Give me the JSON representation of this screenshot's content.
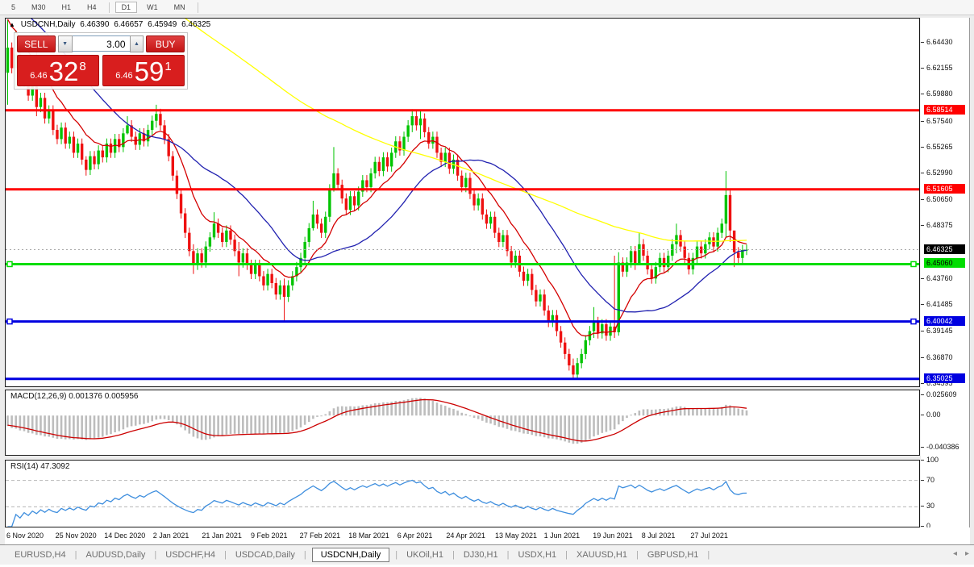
{
  "toolbar": {
    "timeframes": [
      "5",
      "M30",
      "H1",
      "H4",
      "D1",
      "W1",
      "MN"
    ],
    "active": "D1"
  },
  "chart": {
    "marker": "▲",
    "symbol": "USDCNH,Daily",
    "ohlc": {
      "open": "6.46390",
      "high": "6.46657",
      "low": "6.45949",
      "close": "6.46325"
    },
    "trade_panel": {
      "sell_label": "SELL",
      "buy_label": "BUY",
      "volume": "3.00",
      "sell": {
        "small": "6.46",
        "big": "32",
        "sup": "8"
      },
      "buy": {
        "small": "6.46",
        "big": "59",
        "sup": "1"
      }
    },
    "axis_ticks": [
      "6.64430",
      "6.62155",
      "6.59880",
      "6.57540",
      "6.55265",
      "6.52990",
      "6.50650",
      "6.48375",
      "6.43760",
      "6.41485",
      "6.39145",
      "6.36870",
      "6.34595"
    ],
    "dates": [
      "6 Nov 2020",
      "25 Nov 2020",
      "14 Dec 2020",
      "2 Jan 2021",
      "21 Jan 2021",
      "9 Feb 2021",
      "27 Feb 2021",
      "18 Mar 2021",
      "6 Apr 2021",
      "24 Apr 2021",
      "13 May 2021",
      "1 Jun 2021",
      "19 Jun 2021",
      "8 Jul 2021",
      "27 Jul 2021"
    ]
  },
  "chart_data": {
    "type": "candlestick",
    "title": "USDCNH Daily",
    "ylim": [
      6.3437,
      6.6654
    ],
    "levels": [
      {
        "price": 6.58514,
        "label": "6.58514",
        "color": "#FF0000",
        "text_color": "#FFFFFF",
        "handles": false
      },
      {
        "price": 6.51605,
        "label": "6.51605",
        "color": "#FF0000",
        "text_color": "#FFFFFF",
        "handles": false
      },
      {
        "price": 6.4506,
        "label": "6.45060",
        "color": "#00DD00",
        "text_color": "#000000",
        "handles": true
      },
      {
        "price": 6.40042,
        "label": "6.40042",
        "color": "#0000E0",
        "text_color": "#FFFFFF",
        "handles": true
      },
      {
        "price": 6.35025,
        "label": "6.35025",
        "color": "#0000E0",
        "text_color": "#FFFFFF",
        "handles": false
      }
    ],
    "bid": {
      "price": 6.46325,
      "label": "6.46325",
      "color": "#000000",
      "text_color": "#FFFFFF"
    },
    "candle_colors": {
      "up": "#00C400",
      "down": "#EE1111"
    },
    "first_open": 6.618,
    "default_wick": 0.0045,
    "closes": [
      6.64,
      6.622,
      6.634,
      6.61,
      6.618,
      6.598,
      6.606,
      6.588,
      6.596,
      6.578,
      6.585,
      6.568,
      6.56,
      6.57,
      6.556,
      6.562,
      6.548,
      6.556,
      6.542,
      6.533,
      6.545,
      6.538,
      6.55,
      6.544,
      6.556,
      6.548,
      6.56,
      6.553,
      6.565,
      6.572,
      6.562,
      6.555,
      6.565,
      6.558,
      6.568,
      6.576,
      6.582,
      6.572,
      6.56,
      6.545,
      6.528,
      6.512,
      6.495,
      6.478,
      6.462,
      6.45,
      6.46,
      6.452,
      6.466,
      6.474,
      6.486,
      6.478,
      6.47,
      6.48,
      6.472,
      6.462,
      6.452,
      6.46,
      6.45,
      6.442,
      6.45,
      6.44,
      6.432,
      6.442,
      6.434,
      6.424,
      6.432,
      6.422,
      6.432,
      6.44,
      6.448,
      6.456,
      6.47,
      6.482,
      6.494,
      6.486,
      6.478,
      6.492,
      6.516,
      6.53,
      6.52,
      6.508,
      6.498,
      6.51,
      6.502,
      6.514,
      6.524,
      6.518,
      6.53,
      6.54,
      6.532,
      6.544,
      6.536,
      6.548,
      6.558,
      6.55,
      6.562,
      6.572,
      6.58,
      6.572,
      6.578,
      6.566,
      6.556,
      6.562,
      6.548,
      6.54,
      6.548,
      6.534,
      6.542,
      6.528,
      6.518,
      6.526,
      6.512,
      6.502,
      6.508,
      6.494,
      6.486,
      6.492,
      6.478,
      6.47,
      6.476,
      6.462,
      6.452,
      6.458,
      6.444,
      6.436,
      6.442,
      6.428,
      6.418,
      6.424,
      6.41,
      6.4,
      6.406,
      6.392,
      6.382,
      6.372,
      6.362,
      6.354,
      6.364,
      6.372,
      6.384,
      6.392,
      6.4,
      6.39,
      6.398,
      6.388,
      6.396,
      6.391,
      6.452,
      6.444,
      6.452,
      6.462,
      6.45,
      6.468,
      6.458,
      6.446,
      6.438,
      6.448,
      6.456,
      6.448,
      6.458,
      6.468,
      6.476,
      6.466,
      6.456,
      6.446,
      6.456,
      6.466,
      6.46,
      6.468,
      6.474,
      6.466,
      6.478,
      6.486,
      6.511,
      6.48,
      6.461,
      6.456,
      6.463,
      6.4632
    ],
    "wick_overrides": {
      "0": [
        6.664,
        6.59
      ],
      "2": [
        6.655,
        6.605
      ],
      "7": [
        6.64,
        6.58
      ],
      "19": [
        6.545,
        6.528
      ],
      "29": [
        6.58,
        6.564
      ],
      "36": [
        6.59,
        6.57
      ],
      "45": [
        6.468,
        6.442
      ],
      "50": [
        6.496,
        6.472
      ],
      "56": [
        6.47,
        6.44
      ],
      "67": [
        6.438,
        6.401
      ],
      "74": [
        6.506,
        6.48
      ],
      "79": [
        6.553,
        6.514
      ],
      "98": [
        6.5861,
        6.566
      ],
      "100": [
        6.5845,
        6.56
      ],
      "137": [
        6.368,
        6.3503
      ],
      "142": [
        6.413,
        6.386
      ],
      "147": [
        6.458,
        6.386
      ],
      "148": [
        6.461,
        6.388
      ],
      "153": [
        6.478,
        6.452
      ],
      "162": [
        6.486,
        6.46
      ],
      "174": [
        6.532,
        6.474
      ],
      "175": [
        6.515,
        6.47
      ],
      "176": [
        6.468,
        6.448
      ]
    },
    "moving_averages": [
      {
        "name": "fast",
        "type": "ema",
        "period": 12,
        "color": "#D40000"
      },
      {
        "name": "medium",
        "type": "sma",
        "period": 30,
        "color": "#2121B0"
      },
      {
        "name": "slow",
        "type": "sma",
        "period": 120,
        "color": "#FFFF00"
      }
    ],
    "macd": {
      "label": "MACD(12,26,9)",
      "values": "0.001376 0.005956",
      "fast": 12,
      "slow": 26,
      "signal": 9,
      "ylim": [
        -0.05,
        0.032
      ],
      "axis": [
        "0.025609",
        "0.00",
        "-0.040386"
      ],
      "hist_color": "#BDBDBD",
      "signal_color": "#CC0000"
    },
    "rsi": {
      "label": "RSI(14)",
      "value": "47.3092",
      "period": 14,
      "ylim": [
        0,
        100
      ],
      "levels": [
        70,
        30
      ],
      "axis": [
        "100",
        "70",
        "30",
        "0"
      ],
      "line_color": "#3E8EDE"
    }
  },
  "tabs": {
    "items": [
      "EURUSD,H4",
      "AUDUSD,Daily",
      "USDCHF,H4",
      "USDCAD,Daily",
      "USDCNH,Daily",
      "UKOil,H1",
      "DJ30,H1",
      "USDX,H1",
      "XAUUSD,H1",
      "GBPUSD,H1"
    ],
    "active_index": 4
  },
  "scroll": {
    "left": "◂",
    "right": "▸"
  }
}
